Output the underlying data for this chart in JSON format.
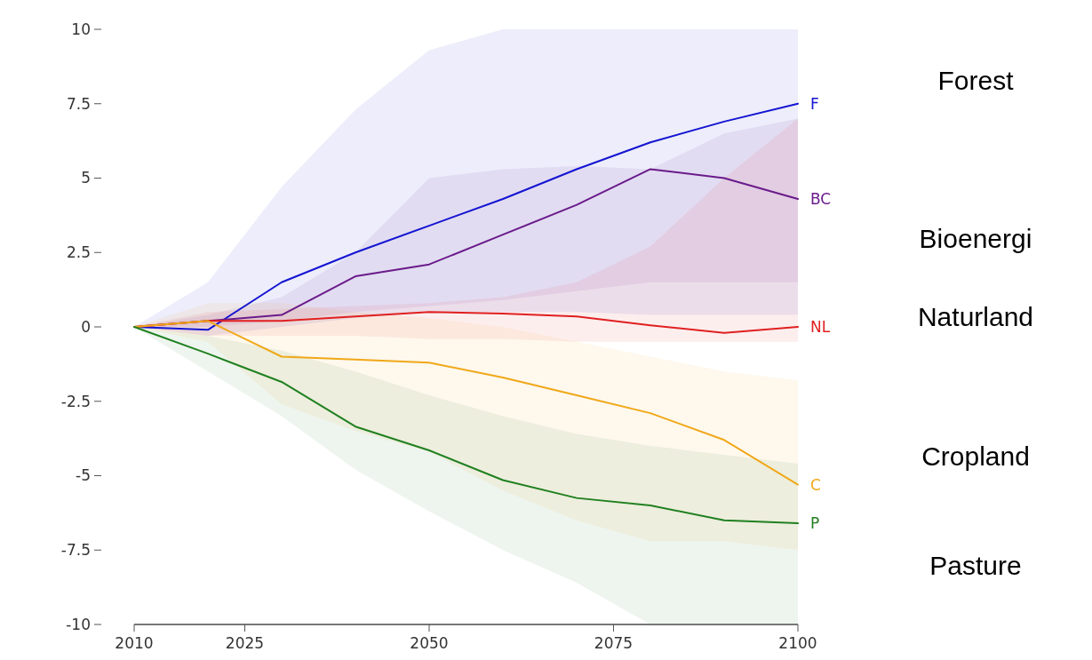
{
  "chart_data": {
    "type": "line",
    "x": [
      2010,
      2020,
      2030,
      2040,
      2050,
      2060,
      2070,
      2080,
      2090,
      2100
    ],
    "xlim": [
      2010,
      2100
    ],
    "xticks": [
      2010,
      2025,
      2050,
      2075,
      2100
    ],
    "ylim": [
      -10,
      10
    ],
    "yticks": [
      -10,
      {
        "value": -7.5,
        "label": "-7.5"
      },
      -5,
      {
        "value": -2.5,
        "label": "-2.5"
      },
      0,
      2.5,
      5,
      7.5,
      10
    ],
    "grid": false,
    "marker": "none",
    "line_style": "solid",
    "series": [
      {
        "name": "F",
        "color": "#1414d2",
        "values": [
          0,
          -0.1,
          1.5,
          2.5,
          3.4,
          4.3,
          5.3,
          6.2,
          6.9,
          7.5
        ],
        "lower": [
          0,
          -0.3,
          0,
          0.3,
          0.5,
          0.5,
          0.5,
          0.4,
          0.4,
          0.4
        ],
        "upper": [
          0,
          1.5,
          4.7,
          7.3,
          9.3,
          10,
          10,
          10,
          10,
          10
        ]
      },
      {
        "name": "BC",
        "color": "#6a1b8a",
        "values": [
          0,
          0.2,
          0.4,
          1.7,
          2.1,
          3.1,
          4.1,
          5.3,
          5.0,
          4.3
        ],
        "lower": [
          0,
          0,
          0.2,
          0.5,
          0.7,
          0.9,
          1.2,
          1.5,
          1.5,
          1.5
        ],
        "upper": [
          0,
          0.4,
          1.0,
          2.5,
          5.0,
          5.3,
          5.4,
          5.3,
          6.5,
          7.0
        ]
      },
      {
        "name": "NL",
        "color": "#e02020",
        "values": [
          0,
          0.2,
          0.2,
          0.35,
          0.5,
          0.45,
          0.35,
          0.05,
          -0.2,
          0
        ],
        "lower": [
          0,
          -0.3,
          -0.3,
          -0.3,
          -0.4,
          -0.4,
          -0.5,
          -0.5,
          -0.5,
          -0.5
        ],
        "upper": [
          0,
          0.5,
          0.6,
          0.7,
          0.8,
          1.0,
          1.5,
          2.7,
          5.0,
          7.0
        ]
      },
      {
        "name": "C",
        "color": "#f0a818",
        "values": [
          0,
          0.2,
          -1.0,
          -1.1,
          -1.2,
          -1.7,
          -2.3,
          -2.9,
          -3.8,
          -5.3
        ],
        "lower": [
          0,
          -0.5,
          -2.6,
          -3.5,
          -4.2,
          -5.5,
          -6.5,
          -7.2,
          -7.2,
          -7.5
        ],
        "upper": [
          0,
          0.8,
          0.8,
          0.5,
          0.3,
          0,
          -0.5,
          -1.0,
          -1.5,
          -1.8
        ]
      },
      {
        "name": "P",
        "color": "#208020",
        "values": [
          0,
          -0.9,
          -1.85,
          -3.35,
          -4.15,
          -5.15,
          -5.75,
          -6.0,
          -6.5,
          -6.6
        ],
        "lower": [
          0,
          -1.5,
          -3.0,
          -4.8,
          -6.2,
          -7.5,
          -8.6,
          -10,
          -10,
          -10
        ],
        "upper": [
          0,
          -0.3,
          -0.8,
          -1.5,
          -2.3,
          -3.0,
          -3.6,
          -4.0,
          -4.3,
          -4.6
        ]
      }
    ],
    "annotations": [
      "Forest",
      "Bioenergi",
      "Naturland",
      "Cropland",
      "Pasture"
    ]
  }
}
